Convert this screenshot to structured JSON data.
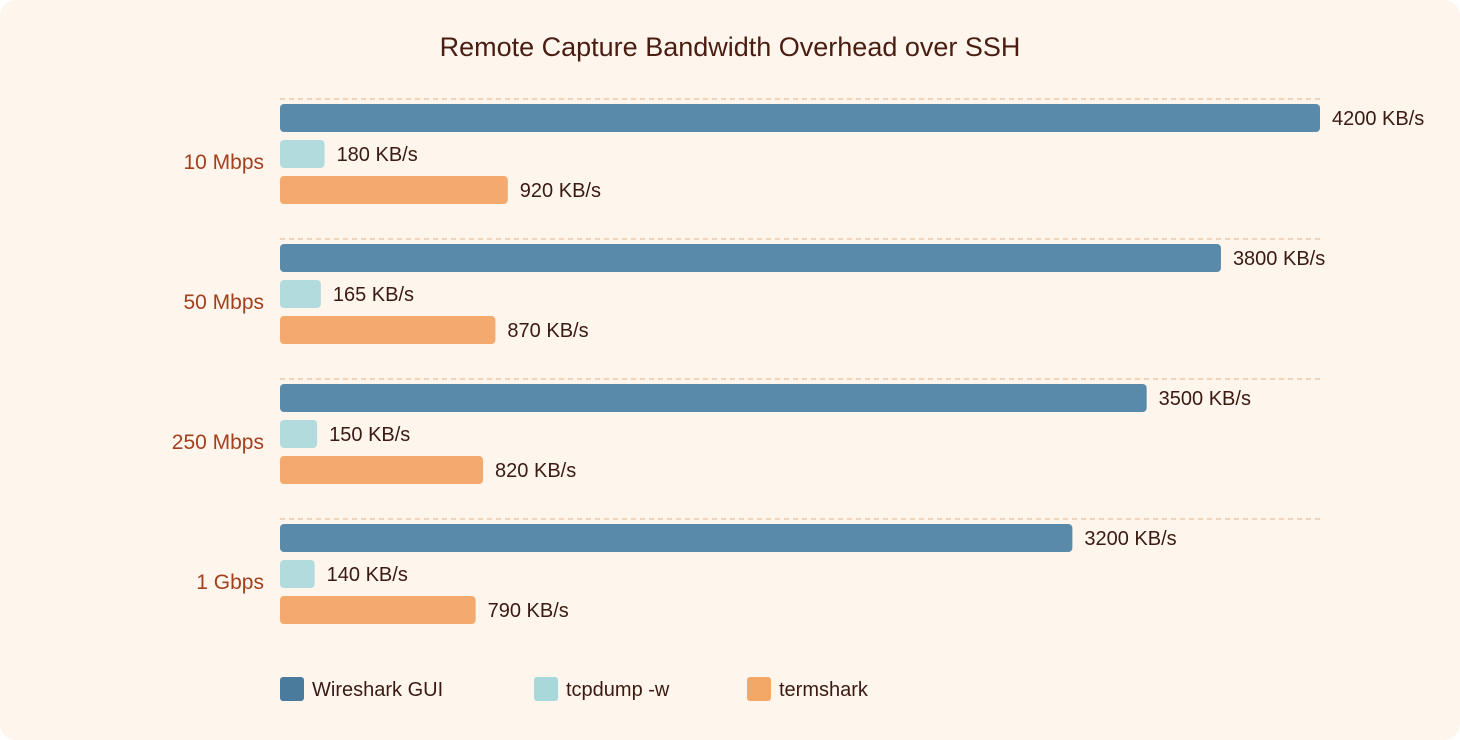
{
  "chart_data": {
    "type": "bar",
    "orientation": "horizontal",
    "title": "Remote Capture Bandwidth Overhead over SSH",
    "xlabel": "",
    "ylabel": "",
    "categories": [
      "10 Mbps",
      "50 Mbps",
      "250 Mbps",
      "1 Gbps"
    ],
    "unit_suffix": " KB/s",
    "xlim": [
      0,
      4200
    ],
    "grid": true,
    "legend_position": "bottom-left",
    "series": [
      {
        "name": "Wireshark GUI",
        "values": [
          4200,
          3800,
          3500,
          3200
        ],
        "color": "#5a8aaa"
      },
      {
        "name": "tcpdump -w",
        "values": [
          180,
          165,
          150,
          140
        ],
        "color": "#b1dbdd"
      },
      {
        "name": "termshark",
        "values": [
          920,
          870,
          820,
          790
        ],
        "color": "#f4aa6e"
      }
    ],
    "legend_colors": [
      "#4a7a9c",
      "#a8d8da",
      "#f4a868"
    ],
    "colors": {
      "background": "#fef5ec",
      "title": "#4a1d12",
      "category_label": "#a3401e",
      "value_label": "#3a1a12",
      "gridline": "#f0c9a8"
    }
  }
}
